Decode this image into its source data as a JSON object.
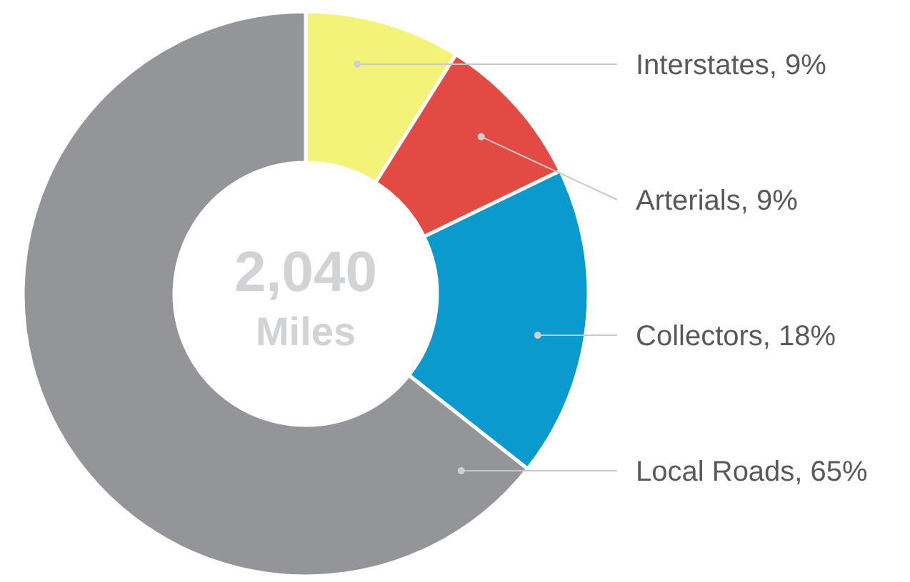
{
  "chart_data": {
    "type": "donut",
    "categories": [
      "Interstates",
      "Arterials",
      "Collectors",
      "Local Roads"
    ],
    "values": [
      9,
      9,
      18,
      65
    ],
    "value_labels": [
      "9%",
      "9%",
      "18%",
      "65%"
    ],
    "colors": [
      "#f3f37a",
      "#e34a44",
      "#0a9acd",
      "#939598"
    ],
    "annotations": [
      "2,040",
      "Miles"
    ]
  }
}
